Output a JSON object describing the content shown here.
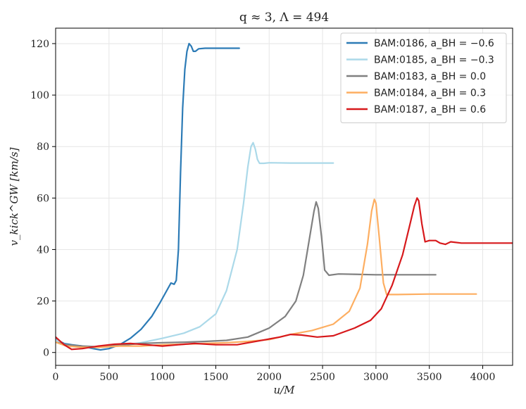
{
  "chart_data": {
    "type": "line",
    "title": "q ≈ 3, Λ = 494",
    "xlabel": "u/M",
    "ylabel": "v_kick^GW [km/s]",
    "xlim": [
      0,
      4280
    ],
    "ylim": [
      -5,
      126
    ],
    "xticks": [
      0,
      500,
      1000,
      1500,
      2000,
      2500,
      3000,
      3500,
      4000
    ],
    "yticks": [
      0,
      20,
      40,
      60,
      80,
      100,
      120
    ],
    "grid": true,
    "legend_position": "top-right",
    "series": [
      {
        "name": "BAM:0186, a_BH = −0.6",
        "color": "#2c7bb6",
        "points": [
          [
            0,
            6
          ],
          [
            30,
            4.5
          ],
          [
            80,
            3.5
          ],
          [
            150,
            3
          ],
          [
            250,
            2.5
          ],
          [
            350,
            1.5
          ],
          [
            420,
            1
          ],
          [
            500,
            1.5
          ],
          [
            600,
            3
          ],
          [
            700,
            5.5
          ],
          [
            800,
            9
          ],
          [
            900,
            14
          ],
          [
            980,
            19.5
          ],
          [
            1040,
            24
          ],
          [
            1080,
            27
          ],
          [
            1110,
            26.5
          ],
          [
            1130,
            28
          ],
          [
            1150,
            40
          ],
          [
            1170,
            70
          ],
          [
            1190,
            95
          ],
          [
            1210,
            110
          ],
          [
            1230,
            117
          ],
          [
            1250,
            120
          ],
          [
            1270,
            119
          ],
          [
            1290,
            117
          ],
          [
            1310,
            117
          ],
          [
            1340,
            118
          ],
          [
            1400,
            118.2
          ],
          [
            1500,
            118.2
          ],
          [
            1600,
            118.2
          ],
          [
            1720,
            118.2
          ]
        ]
      },
      {
        "name": "BAM:0185, a_BH = −0.3",
        "color": "#abd9e9",
        "points": [
          [
            0,
            5
          ],
          [
            60,
            3.5
          ],
          [
            150,
            2.5
          ],
          [
            300,
            2.2
          ],
          [
            450,
            2
          ],
          [
            600,
            2.8
          ],
          [
            800,
            3.8
          ],
          [
            1000,
            5.5
          ],
          [
            1200,
            7.5
          ],
          [
            1350,
            10
          ],
          [
            1500,
            15
          ],
          [
            1600,
            24
          ],
          [
            1700,
            40
          ],
          [
            1760,
            58
          ],
          [
            1800,
            72
          ],
          [
            1830,
            80
          ],
          [
            1850,
            81.5
          ],
          [
            1870,
            79
          ],
          [
            1890,
            75
          ],
          [
            1910,
            73.5
          ],
          [
            1950,
            73.5
          ],
          [
            2000,
            73.7
          ],
          [
            2200,
            73.6
          ],
          [
            2400,
            73.6
          ],
          [
            2600,
            73.6
          ]
        ]
      },
      {
        "name": "BAM:0183, a_BH = 0.0",
        "color": "#808080",
        "points": [
          [
            0,
            4
          ],
          [
            100,
            3
          ],
          [
            250,
            2.5
          ],
          [
            400,
            2.2
          ],
          [
            600,
            2.8
          ],
          [
            800,
            3.5
          ],
          [
            1000,
            3.8
          ],
          [
            1200,
            4
          ],
          [
            1400,
            4.3
          ],
          [
            1600,
            4.7
          ],
          [
            1800,
            6
          ],
          [
            2000,
            9.5
          ],
          [
            2150,
            14
          ],
          [
            2250,
            20
          ],
          [
            2320,
            30
          ],
          [
            2380,
            45
          ],
          [
            2420,
            55
          ],
          [
            2440,
            58.5
          ],
          [
            2460,
            56
          ],
          [
            2490,
            45
          ],
          [
            2520,
            32
          ],
          [
            2560,
            30
          ],
          [
            2650,
            30.5
          ],
          [
            3000,
            30.2
          ],
          [
            3300,
            30.2
          ],
          [
            3560,
            30.2
          ]
        ]
      },
      {
        "name": "BAM:0184, a_BH = 0.3",
        "color": "#fdae61",
        "points": [
          [
            0,
            4
          ],
          [
            100,
            2.5
          ],
          [
            250,
            2
          ],
          [
            400,
            2
          ],
          [
            600,
            2.5
          ],
          [
            800,
            2.5
          ],
          [
            1000,
            3
          ],
          [
            1200,
            3.2
          ],
          [
            1400,
            3.5
          ],
          [
            1600,
            3.8
          ],
          [
            1800,
            4.3
          ],
          [
            2000,
            5
          ],
          [
            2200,
            7
          ],
          [
            2400,
            8.5
          ],
          [
            2600,
            11
          ],
          [
            2750,
            16
          ],
          [
            2850,
            25
          ],
          [
            2920,
            42
          ],
          [
            2960,
            55
          ],
          [
            2985,
            59.5
          ],
          [
            3000,
            58
          ],
          [
            3030,
            45
          ],
          [
            3070,
            27
          ],
          [
            3100,
            22.5
          ],
          [
            3200,
            22.5
          ],
          [
            3500,
            22.7
          ],
          [
            3940,
            22.7
          ]
        ]
      },
      {
        "name": "BAM:0187, a_BH = 0.6",
        "color": "#d7191c",
        "points": [
          [
            0,
            6
          ],
          [
            40,
            4.5
          ],
          [
            80,
            3
          ],
          [
            150,
            1.2
          ],
          [
            250,
            1.5
          ],
          [
            400,
            2.5
          ],
          [
            550,
            3.2
          ],
          [
            700,
            3.5
          ],
          [
            850,
            3
          ],
          [
            1000,
            2.5
          ],
          [
            1150,
            3
          ],
          [
            1300,
            3.5
          ],
          [
            1500,
            3
          ],
          [
            1700,
            3
          ],
          [
            1900,
            4.5
          ],
          [
            2100,
            6
          ],
          [
            2200,
            7
          ],
          [
            2300,
            6.8
          ],
          [
            2450,
            6
          ],
          [
            2600,
            6.5
          ],
          [
            2800,
            9.5
          ],
          [
            2950,
            12.5
          ],
          [
            3050,
            17
          ],
          [
            3150,
            26
          ],
          [
            3250,
            38
          ],
          [
            3320,
            50
          ],
          [
            3360,
            57
          ],
          [
            3385,
            60
          ],
          [
            3400,
            59
          ],
          [
            3430,
            50
          ],
          [
            3460,
            43
          ],
          [
            3500,
            43.5
          ],
          [
            3560,
            43.5
          ],
          [
            3600,
            42.5
          ],
          [
            3650,
            42
          ],
          [
            3700,
            43
          ],
          [
            3800,
            42.5
          ],
          [
            4100,
            42.5
          ],
          [
            4280,
            42.5
          ]
        ]
      }
    ]
  }
}
